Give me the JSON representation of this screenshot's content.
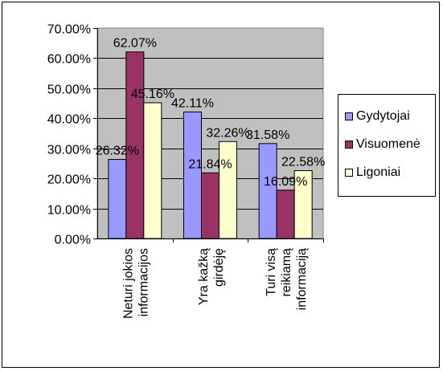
{
  "chart_data": {
    "type": "bar",
    "categories": [
      [
        "Neturi jokios",
        "informacijos"
      ],
      [
        "Yra kažką",
        "girdėję"
      ],
      [
        "Turi visą",
        "reikiamą",
        "informaciją"
      ]
    ],
    "series": [
      {
        "name": "Gydytojai",
        "color": "#9999FF",
        "values": [
          26.32,
          42.11,
          31.58
        ],
        "labels": [
          "26.32%",
          "42.11%",
          "31.58%"
        ]
      },
      {
        "name": "Visuomenė",
        "color": "#993366",
        "values": [
          62.07,
          21.84,
          16.09
        ],
        "labels": [
          "62.07%",
          "21.84%",
          "16.09%"
        ]
      },
      {
        "name": "Ligoniai",
        "color": "#FFFFCC",
        "values": [
          45.16,
          32.26,
          22.58
        ],
        "labels": [
          "45.16%",
          "32.26%",
          "22.58%"
        ]
      }
    ],
    "y_ticks": [
      "0.00%",
      "10.00%",
      "20.00%",
      "30.00%",
      "40.00%",
      "50.00%",
      "60.00%",
      "70.00%"
    ],
    "ylim": [
      0,
      70
    ],
    "grid": true,
    "legend_position": "right",
    "plot_background": "#C0C0C0"
  }
}
